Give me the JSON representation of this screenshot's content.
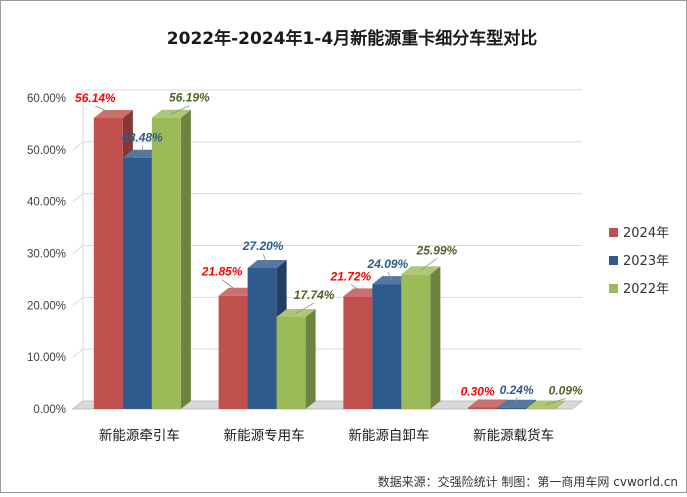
{
  "chart_data": {
    "type": "bar",
    "title": "2022年-2024年1-4月新能源重卡细分车型对比",
    "categories": [
      "新能源牵引车",
      "新能源专用车",
      "新能源自卸车",
      "新能源载货车"
    ],
    "series": [
      {
        "name": "2024年",
        "color": "#C0504D",
        "label_color": "#FF0000",
        "values": [
          56.14,
          21.85,
          21.72,
          0.3
        ],
        "labels": [
          "56.14%",
          "21.85%",
          "21.72%",
          "0.30%"
        ]
      },
      {
        "name": "2023年",
        "color": "#2E5A8C",
        "label_color": "#2E5A8C",
        "values": [
          48.48,
          27.2,
          24.09,
          0.24
        ],
        "labels": [
          "48.48%",
          "27.20%",
          "24.09%",
          "0.24%"
        ]
      },
      {
        "name": "2022年",
        "color": "#9BBB59",
        "label_color": "#4F6228",
        "values": [
          56.19,
          17.74,
          25.99,
          0.09
        ],
        "labels": [
          "56.19%",
          "17.74%",
          "25.99%",
          "0.09%"
        ]
      }
    ],
    "yticks": [
      "0.00%",
      "10.00%",
      "20.00%",
      "30.00%",
      "40.00%",
      "50.00%",
      "60.00%"
    ],
    "ylim": [
      0,
      60
    ],
    "grid": true,
    "legend_position": "right",
    "source_note": "数据来源：交强险统计  制图：第一商用车网 cvworld.cn"
  }
}
